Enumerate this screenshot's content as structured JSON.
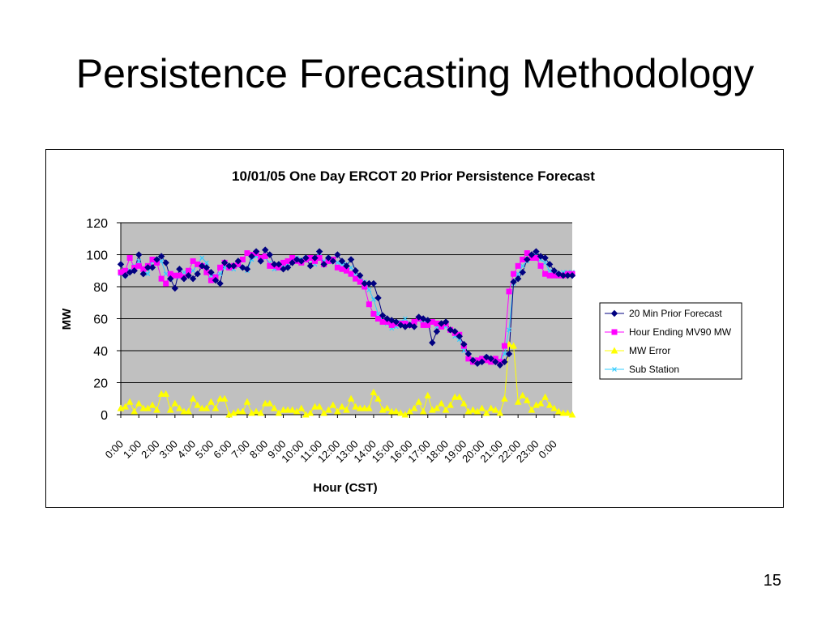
{
  "slide": {
    "title": "Persistence Forecasting Methodology",
    "page_number": "15"
  },
  "chart_data": {
    "type": "line",
    "title": "10/01/05 One Day ERCOT 20 Prior Persistence Forecast",
    "xlabel": "Hour (CST)",
    "ylabel": "MW",
    "ylim": [
      0,
      120
    ],
    "yticks": [
      0,
      20,
      40,
      60,
      80,
      100,
      120
    ],
    "xticklabels": [
      "0:00",
      "1:00",
      "2:00",
      "3:00",
      "4:00",
      "5:00",
      "6:00",
      "7:00",
      "8:00",
      "9:00",
      "10:00",
      "11:00",
      "12:00",
      "13:00",
      "14:00",
      "15:00",
      "16:00",
      "17:00",
      "18:00",
      "19:00",
      "20:00",
      "21:00",
      "22:00",
      "23:00",
      "0:00"
    ],
    "points_per_hour": 4,
    "grid": "horizontal",
    "plot_background": "#c0c0c0",
    "legend_position": "right",
    "series": [
      {
        "name": "20 Min Prior Forecast",
        "color": "#000080",
        "marker": "diamond",
        "values": [
          94,
          87,
          89,
          90,
          100,
          88,
          92,
          92,
          97,
          99,
          95,
          85,
          79,
          91,
          85,
          87,
          85,
          88,
          93,
          92,
          89,
          84,
          82,
          95,
          93,
          93,
          96,
          92,
          91,
          99,
          102,
          96,
          103,
          100,
          94,
          94,
          91,
          92,
          95,
          97,
          96,
          98,
          93,
          98,
          102,
          94,
          98,
          96,
          100,
          96,
          93,
          97,
          90,
          87,
          82,
          82,
          82,
          73,
          62,
          60,
          59,
          58,
          56,
          55,
          56,
          55,
          61,
          60,
          59,
          45,
          52,
          57,
          58,
          53,
          52,
          49,
          44,
          38,
          34,
          32,
          33,
          36,
          35,
          33,
          31,
          33,
          38,
          83,
          85,
          89,
          97,
          100,
          102,
          99,
          98,
          94,
          90,
          88,
          87,
          87,
          87
        ]
      },
      {
        "name": "Hour Ending MV90 MW",
        "color": "#ff00ff",
        "marker": "square",
        "values": [
          89,
          90,
          98,
          92,
          93,
          91,
          93,
          97,
          95,
          85,
          82,
          88,
          87,
          87,
          86,
          90,
          96,
          94,
          93,
          89,
          84,
          86,
          92,
          95,
          92,
          93,
          94,
          97,
          101,
          100,
          101,
          98,
          99,
          93,
          93,
          92,
          95,
          96,
          98,
          96,
          95,
          97,
          98,
          96,
          98,
          94,
          96,
          97,
          92,
          91,
          90,
          88,
          85,
          83,
          80,
          69,
          63,
          60,
          58,
          58,
          56,
          57,
          57,
          57,
          56,
          58,
          60,
          56,
          56,
          58,
          57,
          55,
          57,
          53,
          51,
          50,
          43,
          35,
          33,
          34,
          35,
          34,
          33,
          35,
          33,
          43,
          77,
          88,
          93,
          97,
          101,
          98,
          98,
          93,
          88,
          87,
          87,
          87,
          87,
          88,
          88
        ]
      },
      {
        "name": "MW Error",
        "color": "#ffff00",
        "marker": "triangle",
        "values": [
          4,
          5,
          8,
          2,
          7,
          4,
          4,
          6,
          3,
          13,
          13,
          3,
          7,
          4,
          2,
          2,
          10,
          6,
          4,
          4,
          8,
          4,
          10,
          10,
          0,
          1,
          2,
          2,
          8,
          1,
          2,
          1,
          7,
          7,
          4,
          1,
          3,
          3,
          3,
          2,
          4,
          0,
          1,
          5,
          5,
          1,
          3,
          6,
          2,
          5,
          3,
          10,
          5,
          4,
          4,
          4,
          14,
          10,
          3,
          4,
          2,
          2,
          1,
          0,
          2,
          4,
          8,
          2,
          12,
          3,
          4,
          7,
          3,
          6,
          11,
          11,
          7,
          2,
          3,
          2,
          4,
          1,
          4,
          3,
          1,
          10,
          44,
          43,
          8,
          12,
          9,
          3,
          6,
          7,
          11,
          6,
          4,
          2,
          1,
          1,
          0
        ]
      },
      {
        "name": "Sub Station",
        "color": "#33ccff",
        "marker": "x",
        "values": [
          88,
          87,
          90,
          93,
          96,
          90,
          88,
          96,
          97,
          96,
          88,
          85,
          87,
          86,
          89,
          88,
          90,
          94,
          98,
          95,
          87,
          87,
          88,
          92,
          93,
          91,
          93,
          92,
          90,
          97,
          99,
          97,
          98,
          95,
          91,
          92,
          93,
          94,
          96,
          98,
          97,
          98,
          97,
          94,
          99,
          96,
          98,
          97,
          95,
          94,
          94,
          92,
          88,
          86,
          83,
          78,
          72,
          63,
          59,
          57,
          54,
          55,
          58,
          60,
          57,
          58,
          59,
          57,
          58,
          58,
          55,
          56,
          55,
          53,
          49,
          47,
          40,
          37,
          34,
          33,
          34,
          36,
          35,
          34,
          33,
          38,
          53,
          82,
          88,
          93,
          96,
          98,
          100,
          97,
          95,
          90,
          89,
          88,
          89,
          89,
          89
        ]
      }
    ]
  }
}
